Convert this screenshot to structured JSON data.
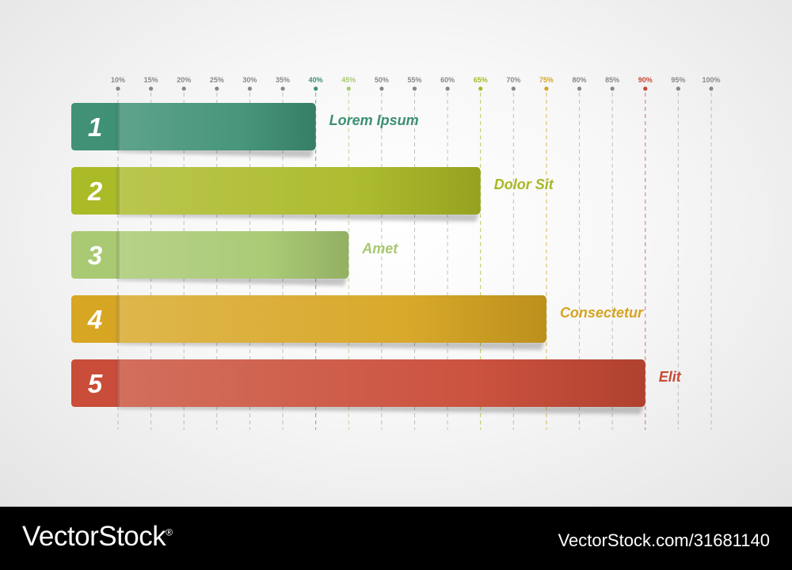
{
  "chart_data": {
    "type": "bar",
    "orientation": "horizontal",
    "x_ticks": [
      "10%",
      "15%",
      "20%",
      "25%",
      "30%",
      "35%",
      "40%",
      "45%",
      "50%",
      "55%",
      "60%",
      "65%",
      "70%",
      "75%",
      "80%",
      "85%",
      "90%",
      "95%",
      "100%"
    ],
    "xlim": [
      10,
      100
    ],
    "grid": true,
    "categories": [
      "1",
      "2",
      "3",
      "4",
      "5"
    ],
    "labels": [
      "Lorem Ipsum",
      "Dolor Sit",
      "Amet",
      "Consectetur",
      "Elit"
    ],
    "values": [
      40,
      65,
      45,
      75,
      90
    ],
    "colors": [
      "#3d8f74",
      "#a9b824",
      "#a7c870",
      "#d6a420",
      "#c84a35"
    ],
    "tick_default_color": "#888888"
  },
  "footer": {
    "brand": "VectorStock",
    "brand_mark": "®",
    "stock_id": "VectorStock.com/31681140"
  }
}
